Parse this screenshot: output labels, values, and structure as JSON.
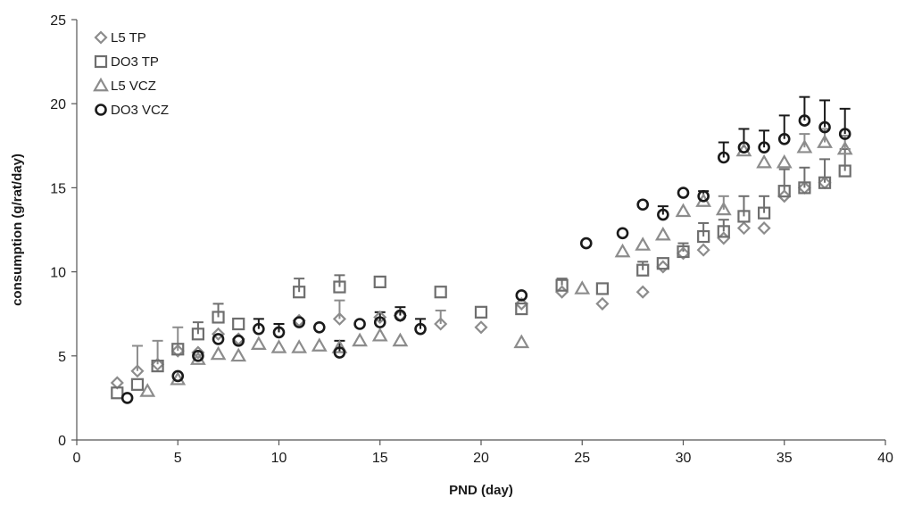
{
  "chart_data": {
    "type": "scatter",
    "title": "",
    "xlabel": "PND (day)",
    "ylabel": "consumption (g/rat/day)",
    "xlim": [
      0,
      40
    ],
    "ylim": [
      0,
      25
    ],
    "xticks": [
      "0",
      "5",
      "10",
      "15",
      "20",
      "25",
      "30",
      "35",
      "40"
    ],
    "yticks": [
      "0",
      "5",
      "10",
      "15",
      "20",
      "25"
    ],
    "grid": false,
    "legend_position": "top-left",
    "series": [
      {
        "name": "L5 TP",
        "marker": "diamond",
        "color": "#8c8c8c",
        "points": [
          {
            "x": 2,
            "y": 3.4,
            "err": 0
          },
          {
            "x": 3,
            "y": 4.1,
            "err": 1.5
          },
          {
            "x": 4,
            "y": 4.5,
            "err": 1.4
          },
          {
            "x": 5,
            "y": 5.3,
            "err": 1.4
          },
          {
            "x": 6,
            "y": 5.2,
            "err": 0
          },
          {
            "x": 7,
            "y": 6.3,
            "err": 0
          },
          {
            "x": 8,
            "y": 6.0,
            "err": 0
          },
          {
            "x": 11,
            "y": 7.1,
            "err": 0
          },
          {
            "x": 13,
            "y": 7.2,
            "err": 1.1
          },
          {
            "x": 15,
            "y": 7.3,
            "err": 0
          },
          {
            "x": 16,
            "y": 7.4,
            "err": 0
          },
          {
            "x": 18,
            "y": 6.9,
            "err": 0.8
          },
          {
            "x": 20,
            "y": 6.7,
            "err": 0
          },
          {
            "x": 22,
            "y": 8.1,
            "err": 0
          },
          {
            "x": 24,
            "y": 8.8,
            "err": 0
          },
          {
            "x": 26,
            "y": 8.1,
            "err": 0
          },
          {
            "x": 28,
            "y": 8.8,
            "err": 0
          },
          {
            "x": 29,
            "y": 10.3,
            "err": 0
          },
          {
            "x": 30,
            "y": 11.1,
            "err": 0
          },
          {
            "x": 31,
            "y": 11.3,
            "err": 0
          },
          {
            "x": 32,
            "y": 12.0,
            "err": 0
          },
          {
            "x": 33,
            "y": 12.6,
            "err": 0
          },
          {
            "x": 34,
            "y": 12.6,
            "err": 0
          },
          {
            "x": 35,
            "y": 14.5,
            "err": 0
          },
          {
            "x": 36,
            "y": 15.0,
            "err": 0
          },
          {
            "x": 37,
            "y": 15.3,
            "err": 0
          }
        ]
      },
      {
        "name": "DO3 TP",
        "marker": "square",
        "color": "#6e6e6e",
        "points": [
          {
            "x": 2,
            "y": 2.8,
            "err": 0
          },
          {
            "x": 3,
            "y": 3.3,
            "err": 0
          },
          {
            "x": 4,
            "y": 4.4,
            "err": 0
          },
          {
            "x": 5,
            "y": 5.4,
            "err": 0
          },
          {
            "x": 6,
            "y": 6.3,
            "err": 0.7
          },
          {
            "x": 7,
            "y": 7.3,
            "err": 0.8
          },
          {
            "x": 8,
            "y": 6.9,
            "err": 0
          },
          {
            "x": 11,
            "y": 8.8,
            "err": 0.8
          },
          {
            "x": 13,
            "y": 9.1,
            "err": 0.7
          },
          {
            "x": 15,
            "y": 9.4,
            "err": 0
          },
          {
            "x": 18,
            "y": 8.8,
            "err": 0
          },
          {
            "x": 20,
            "y": 7.6,
            "err": 0
          },
          {
            "x": 22,
            "y": 7.8,
            "err": 0
          },
          {
            "x": 24,
            "y": 9.2,
            "err": 0.4
          },
          {
            "x": 26,
            "y": 9.0,
            "err": 0
          },
          {
            "x": 28,
            "y": 10.1,
            "err": 0.5
          },
          {
            "x": 29,
            "y": 10.5,
            "err": 0
          },
          {
            "x": 30,
            "y": 11.2,
            "err": 0.5
          },
          {
            "x": 31,
            "y": 12.1,
            "err": 0.8
          },
          {
            "x": 32,
            "y": 12.4,
            "err": 0.7
          },
          {
            "x": 33,
            "y": 13.3,
            "err": 1.2
          },
          {
            "x": 34,
            "y": 13.5,
            "err": 1.0
          },
          {
            "x": 35,
            "y": 14.8,
            "err": 1.3
          },
          {
            "x": 36,
            "y": 15.0,
            "err": 1.2
          },
          {
            "x": 37,
            "y": 15.3,
            "err": 1.4
          },
          {
            "x": 38,
            "y": 16.0,
            "err": 1.3
          }
        ]
      },
      {
        "name": "L5 VCZ",
        "marker": "triangle",
        "color": "#8c8c8c",
        "points": [
          {
            "x": 3.5,
            "y": 2.9,
            "err": 0
          },
          {
            "x": 5,
            "y": 3.6,
            "err": 0
          },
          {
            "x": 6,
            "y": 4.8,
            "err": 0
          },
          {
            "x": 7,
            "y": 5.1,
            "err": 0
          },
          {
            "x": 8,
            "y": 5.0,
            "err": 0
          },
          {
            "x": 9,
            "y": 5.7,
            "err": 0
          },
          {
            "x": 10,
            "y": 5.5,
            "err": 0
          },
          {
            "x": 11,
            "y": 5.5,
            "err": 0
          },
          {
            "x": 12,
            "y": 5.6,
            "err": 0
          },
          {
            "x": 13,
            "y": 5.5,
            "err": 0
          },
          {
            "x": 14,
            "y": 5.9,
            "err": 0
          },
          {
            "x": 15,
            "y": 6.2,
            "err": 0
          },
          {
            "x": 16,
            "y": 5.9,
            "err": 0
          },
          {
            "x": 22,
            "y": 5.8,
            "err": 0
          },
          {
            "x": 25,
            "y": 9.0,
            "err": 0
          },
          {
            "x": 27,
            "y": 11.2,
            "err": 0
          },
          {
            "x": 28,
            "y": 11.6,
            "err": 0
          },
          {
            "x": 29,
            "y": 12.2,
            "err": 0
          },
          {
            "x": 30,
            "y": 13.6,
            "err": 0
          },
          {
            "x": 31,
            "y": 14.2,
            "err": 0
          },
          {
            "x": 32,
            "y": 13.7,
            "err": 0.8
          },
          {
            "x": 33,
            "y": 17.2,
            "err": 0
          },
          {
            "x": 34,
            "y": 16.5,
            "err": 0
          },
          {
            "x": 35,
            "y": 16.5,
            "err": 0
          },
          {
            "x": 36,
            "y": 17.4,
            "err": 0.8
          },
          {
            "x": 37,
            "y": 17.7,
            "err": 0.8
          },
          {
            "x": 38,
            "y": 17.3,
            "err": 0.8
          }
        ]
      },
      {
        "name": "DO3 VCZ",
        "marker": "circle",
        "color": "#1a1a1a",
        "points": [
          {
            "x": 2.5,
            "y": 2.5,
            "err": 0
          },
          {
            "x": 5,
            "y": 3.8,
            "err": 0
          },
          {
            "x": 6,
            "y": 5.0,
            "err": 0
          },
          {
            "x": 7,
            "y": 6.0,
            "err": 0
          },
          {
            "x": 8,
            "y": 5.9,
            "err": 0
          },
          {
            "x": 9,
            "y": 6.6,
            "err": 0.6
          },
          {
            "x": 10,
            "y": 6.4,
            "err": 0.5
          },
          {
            "x": 11,
            "y": 7.0,
            "err": 0
          },
          {
            "x": 12,
            "y": 6.7,
            "err": 0
          },
          {
            "x": 13,
            "y": 5.2,
            "err": 0.7
          },
          {
            "x": 14,
            "y": 6.9,
            "err": 0
          },
          {
            "x": 15,
            "y": 7.0,
            "err": 0.6
          },
          {
            "x": 16,
            "y": 7.4,
            "err": 0.5
          },
          {
            "x": 17,
            "y": 6.6,
            "err": 0.6
          },
          {
            "x": 22,
            "y": 8.6,
            "err": 0
          },
          {
            "x": 25.2,
            "y": 11.7,
            "err": 0
          },
          {
            "x": 27,
            "y": 12.3,
            "err": 0
          },
          {
            "x": 28,
            "y": 14.0,
            "err": 0
          },
          {
            "x": 29,
            "y": 13.4,
            "err": 0.5
          },
          {
            "x": 30,
            "y": 14.7,
            "err": 0
          },
          {
            "x": 31,
            "y": 14.5,
            "err": 0.3
          },
          {
            "x": 32,
            "y": 16.8,
            "err": 0.9
          },
          {
            "x": 33,
            "y": 17.4,
            "err": 1.1
          },
          {
            "x": 34,
            "y": 17.4,
            "err": 1.0
          },
          {
            "x": 35,
            "y": 17.9,
            "err": 1.4
          },
          {
            "x": 36,
            "y": 19.0,
            "err": 1.4
          },
          {
            "x": 37,
            "y": 18.6,
            "err": 1.6
          },
          {
            "x": 38,
            "y": 18.2,
            "err": 1.5
          }
        ]
      }
    ]
  }
}
